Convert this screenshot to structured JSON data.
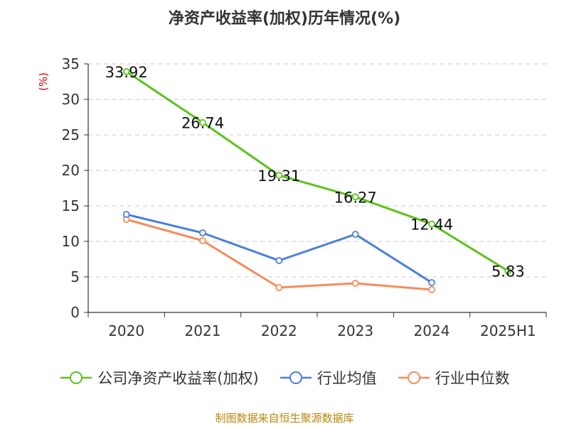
{
  "chart_data": {
    "type": "line",
    "title": "净资产收益率(加权)历年情况(%)",
    "ylabel": "(%)",
    "categories": [
      "2020",
      "2021",
      "2022",
      "2023",
      "2024",
      "2025H1"
    ],
    "ylim": [
      0,
      35
    ],
    "yticks": [
      0,
      5,
      10,
      15,
      20,
      25,
      30,
      35
    ],
    "grid": true,
    "legend_position": "bottom",
    "series": [
      {
        "name": "公司净资产收益率(加权)",
        "color": "#5cc21c",
        "values": [
          33.92,
          26.74,
          19.31,
          16.27,
          12.44,
          5.83
        ],
        "labels": [
          "33.92",
          "26.74",
          "19.31",
          "16.27",
          "12.44",
          "5.83"
        ]
      },
      {
        "name": "行业均值",
        "color": "#4a7fd8",
        "values": [
          13.8,
          11.2,
          7.3,
          11.0,
          4.2,
          null
        ]
      },
      {
        "name": "行业中位数",
        "color": "#f58b5b",
        "values": [
          13.1,
          10.1,
          3.5,
          4.1,
          3.2,
          null
        ]
      }
    ]
  },
  "source": "制图数据来自恒生聚源数据库"
}
